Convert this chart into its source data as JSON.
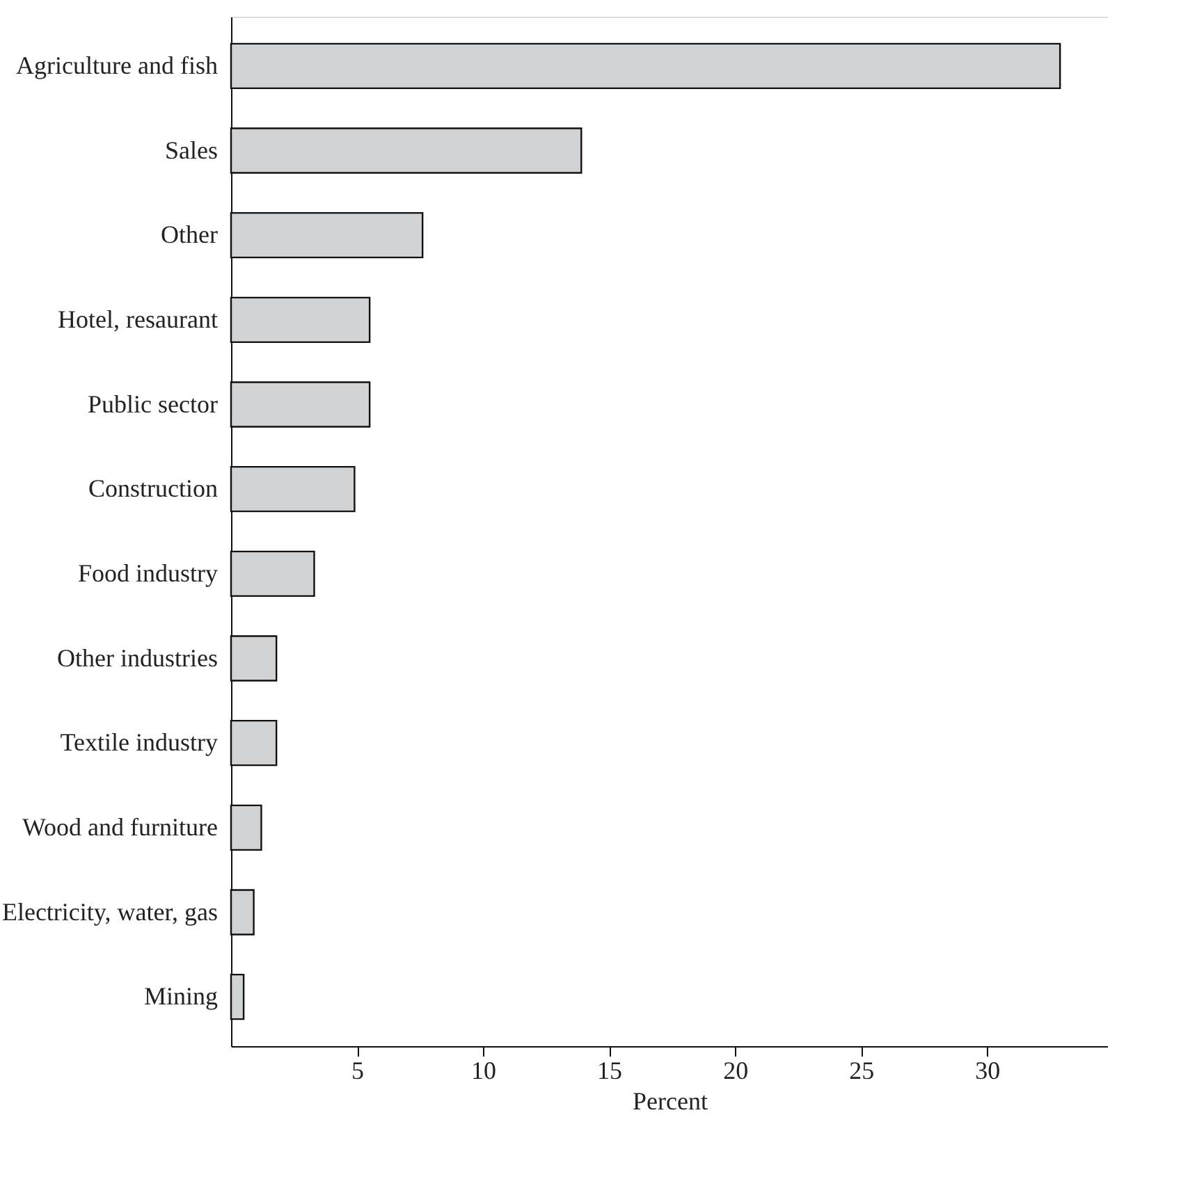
{
  "chart_data": {
    "type": "bar",
    "orientation": "horizontal",
    "xlabel": "Percent",
    "categories": [
      "Agriculture and fish",
      "Sales",
      "Other",
      "Hotel, resaurant",
      "Public sector",
      "Construction",
      "Food industry",
      "Other industries",
      "Textile industry",
      "Wood and furniture",
      "Electricity, water, gas",
      "Mining"
    ],
    "values": [
      32.9,
      13.9,
      7.6,
      5.5,
      5.5,
      4.9,
      3.3,
      1.8,
      1.8,
      1.2,
      0.9,
      0.5
    ],
    "color": "#d1d2d4",
    "xlim": [
      0,
      34.8
    ],
    "xticks": [
      5,
      10,
      15,
      20,
      25,
      30
    ],
    "grid": false
  }
}
